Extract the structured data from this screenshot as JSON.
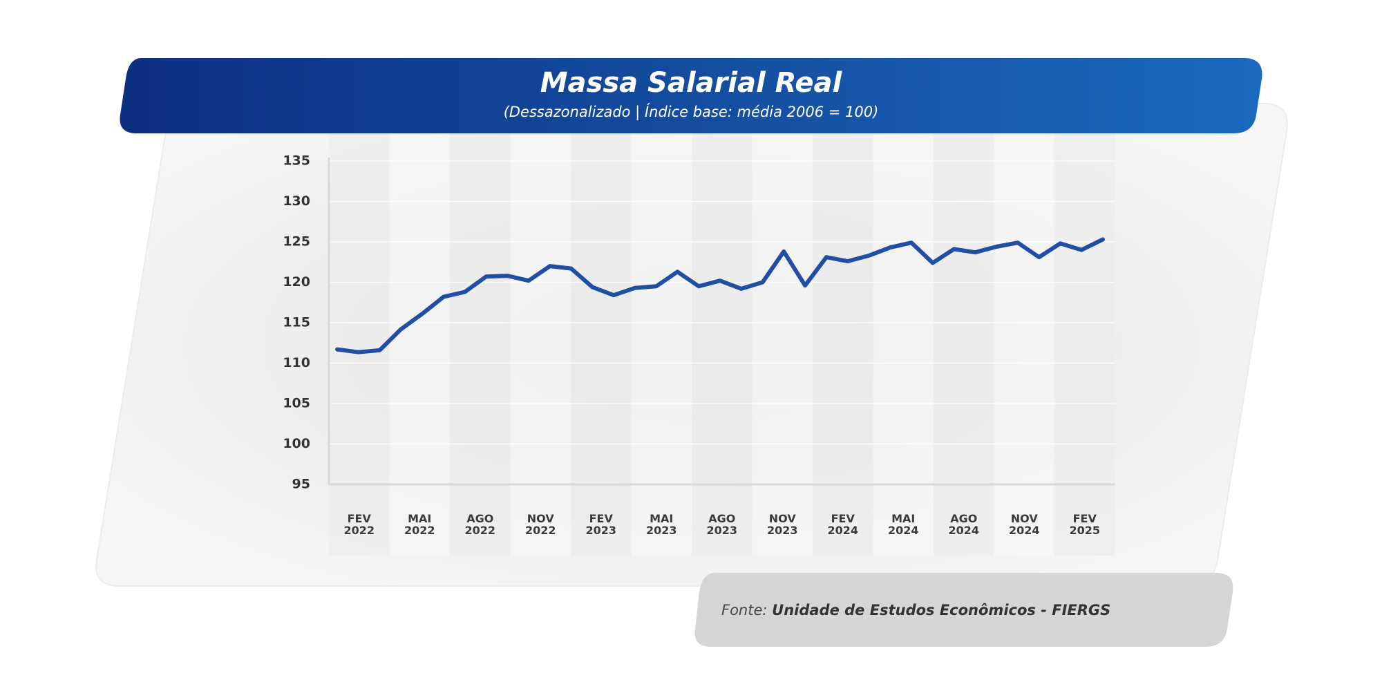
{
  "chart_data": {
    "type": "line",
    "title": "Massa Salarial Real",
    "subtitle": "(Dessazonalizado | Índice base: média 2006 = 100)",
    "xtick_labels": [
      "FEV 2022",
      "MAI 2022",
      "AGO 2022",
      "NOV 2022",
      "FEV 2023",
      "MAI 2023",
      "AGO 2023",
      "NOV 2023",
      "FEV 2024",
      "MAI 2024",
      "AGO 2024",
      "NOV 2024",
      "FEV 2025"
    ],
    "series": [
      {
        "name": "Massa Salarial Real",
        "color": "#1f4ea3",
        "values": [
          111.7,
          111.35,
          111.6,
          114.2,
          116.1,
          118.2,
          118.8,
          120.7,
          120.8,
          120.2,
          122.0,
          121.7,
          119.4,
          118.4,
          119.3,
          119.5,
          121.3,
          119.5,
          120.2,
          119.2,
          120.0,
          123.8,
          119.6,
          123.1,
          122.6,
          123.3,
          124.3,
          124.9,
          122.4,
          124.1,
          123.7,
          124.4,
          124.9,
          123.1,
          124.8,
          124.0,
          125.3
        ]
      }
    ],
    "ylim": [
      95,
      135
    ],
    "yticks": [
      95,
      100,
      105,
      110,
      115,
      120,
      125,
      130,
      135
    ],
    "grid": true,
    "source_prefix": "Fonte:",
    "source": "Unidade de Estudos Econômicos - FIERGS"
  }
}
